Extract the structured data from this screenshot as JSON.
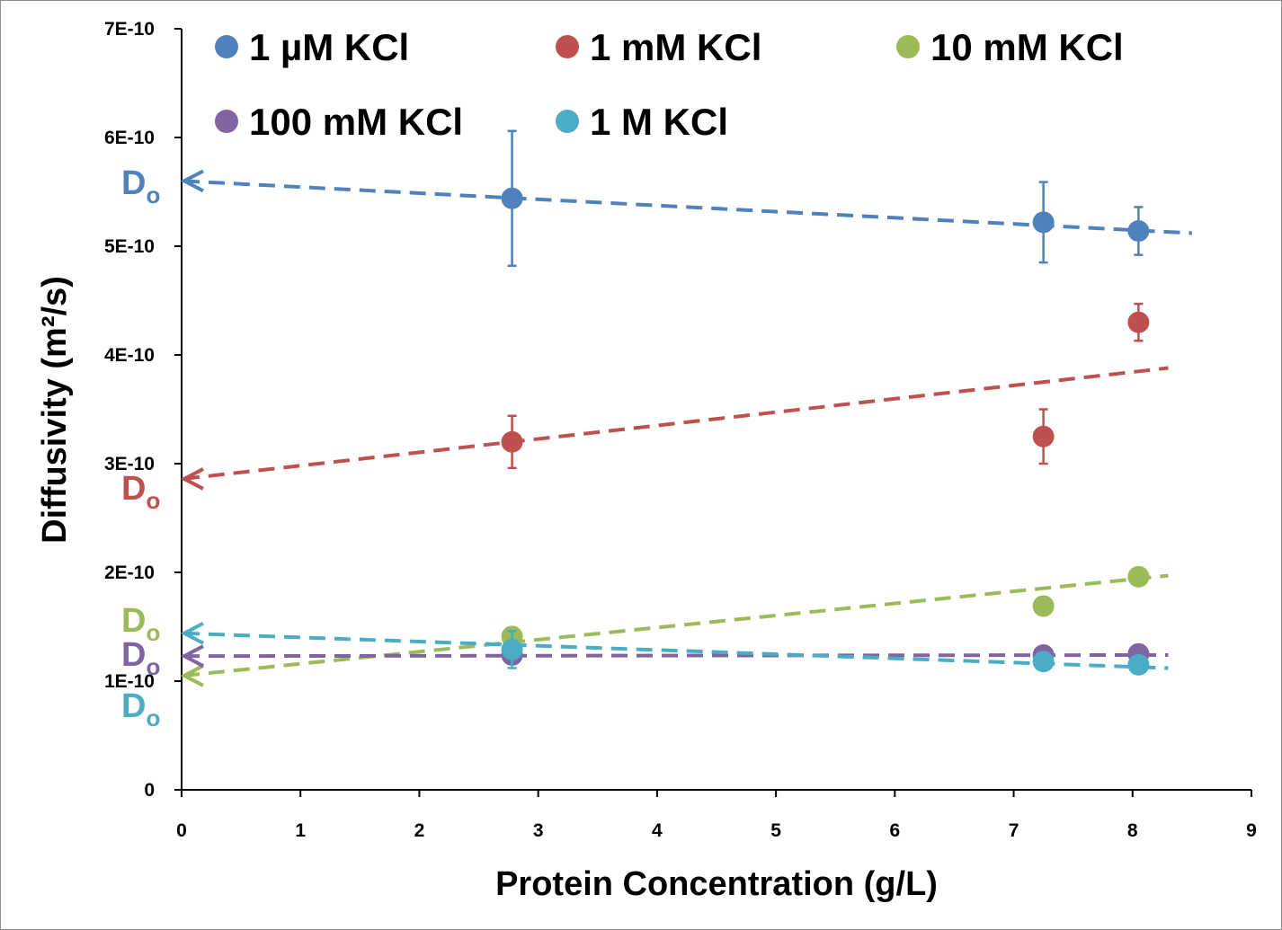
{
  "chart_data": {
    "type": "scatter",
    "xlabel": "Protein Concentration (g/L)",
    "ylabel": "Diffusivity (m²/s)",
    "xlim": [
      0,
      9
    ],
    "ylim": [
      0,
      7e-10
    ],
    "x_ticks": [
      "0",
      "1",
      "2",
      "3",
      "4",
      "5",
      "6",
      "7",
      "8",
      "9"
    ],
    "y_ticks": [
      "0",
      "1E-10",
      "2E-10",
      "3E-10",
      "4E-10",
      "5E-10",
      "6E-10",
      "7E-10"
    ],
    "grid": false,
    "legend_position": "top",
    "intercept_label": "D",
    "intercept_label_sub": "o",
    "series": [
      {
        "name": "1 µM KCl",
        "color": "#4f81bd",
        "points": [
          {
            "x": 2.78,
            "y": 5.44e-10,
            "err": 6.2e-11
          },
          {
            "x": 7.25,
            "y": 5.22e-10,
            "err": 3.7e-11
          },
          {
            "x": 8.05,
            "y": 5.14e-10,
            "err": 2.2e-11
          }
        ],
        "trend": {
          "x0": 0,
          "y0": 5.6e-10,
          "x1": 8.5,
          "y1": 5.12e-10
        }
      },
      {
        "name": "1 mM KCl",
        "color": "#c0504d",
        "points": [
          {
            "x": 2.78,
            "y": 3.2e-10,
            "err": 2.4e-11
          },
          {
            "x": 7.25,
            "y": 3.25e-10,
            "err": 2.5e-11
          },
          {
            "x": 8.05,
            "y": 4.3e-10,
            "err": 1.7e-11
          }
        ],
        "trend": {
          "x0": 0,
          "y0": 2.86e-10,
          "x1": 8.3,
          "y1": 3.88e-10
        }
      },
      {
        "name": "10 mM KCl",
        "color": "#9bbb59",
        "points": [
          {
            "x": 2.78,
            "y": 1.41e-10,
            "err": 3e-12
          },
          {
            "x": 7.25,
            "y": 1.69e-10,
            "err": 2e-12
          },
          {
            "x": 8.05,
            "y": 1.96e-10,
            "err": 2e-12
          }
        ],
        "trend": {
          "x0": 0,
          "y0": 1.05e-10,
          "x1": 8.3,
          "y1": 1.97e-10
        }
      },
      {
        "name": "100 mM KCl",
        "color": "#8064a2",
        "points": [
          {
            "x": 2.78,
            "y": 1.24e-10,
            "err": 2e-12
          },
          {
            "x": 7.25,
            "y": 1.24e-10,
            "err": 2e-12
          },
          {
            "x": 8.05,
            "y": 1.25e-10,
            "err": 2e-12
          }
        ],
        "trend": {
          "x0": 0,
          "y0": 1.23e-10,
          "x1": 8.3,
          "y1": 1.24e-10
        }
      },
      {
        "name": "1 M KCl",
        "color": "#4bacc6",
        "points": [
          {
            "x": 2.78,
            "y": 1.29e-10,
            "err": 1.7e-11
          },
          {
            "x": 7.25,
            "y": 1.18e-10,
            "err": 2e-12
          },
          {
            "x": 8.05,
            "y": 1.15e-10,
            "err": 2e-12
          }
        ],
        "trend": {
          "x0": 0,
          "y0": 1.44e-10,
          "x1": 8.3,
          "y1": 1.12e-10
        }
      }
    ]
  }
}
